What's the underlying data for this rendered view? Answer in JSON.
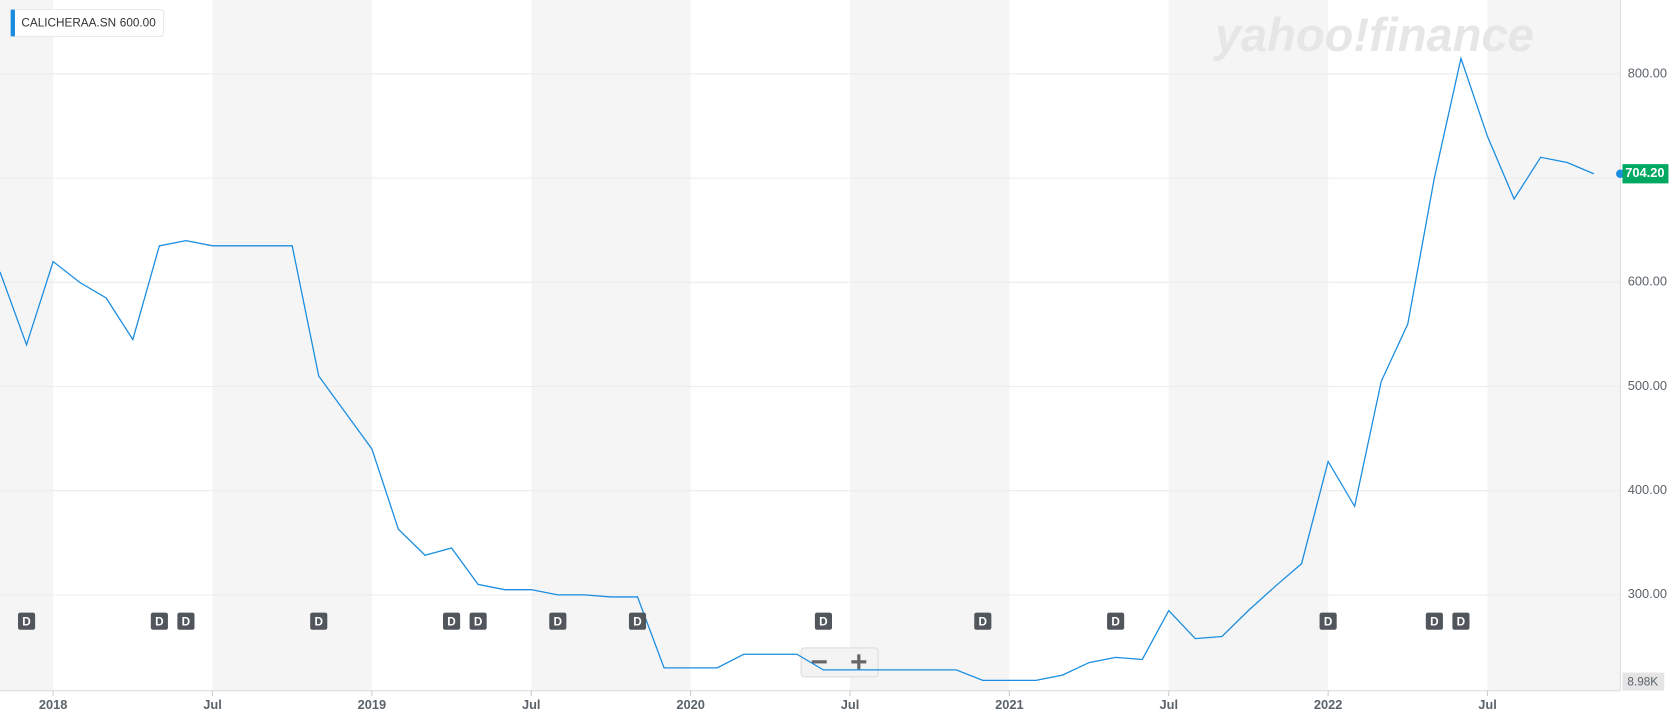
{
  "chart_data": {
    "type": "line",
    "ticker": "CALICHERAA.SN",
    "hover_value": "600.00",
    "watermark": "yahoo!finance",
    "volume_label": "8.98K",
    "x": [
      "2017-11",
      "2017-12",
      "2018-01",
      "2018-02",
      "2018-03",
      "2018-04",
      "2018-05",
      "2018-06",
      "2018-07",
      "2018-08",
      "2018-09",
      "2018-10",
      "2018-11",
      "2018-12",
      "2019-01",
      "2019-02",
      "2019-03",
      "2019-04",
      "2019-05",
      "2019-06",
      "2019-07",
      "2019-08",
      "2019-09",
      "2019-10",
      "2019-11",
      "2019-12",
      "2020-01",
      "2020-02",
      "2020-03",
      "2020-04",
      "2020-05",
      "2020-06",
      "2020-07",
      "2020-08",
      "2020-09",
      "2020-10",
      "2020-11",
      "2020-12",
      "2021-01",
      "2021-02",
      "2021-03",
      "2021-04",
      "2021-05",
      "2021-06",
      "2021-07",
      "2021-08",
      "2021-09",
      "2021-10",
      "2021-11",
      "2021-12",
      "2022-01",
      "2022-02",
      "2022-03",
      "2022-04",
      "2022-05",
      "2022-06",
      "2022-07",
      "2022-08",
      "2022-09",
      "2022-10",
      "2022-11"
    ],
    "series": [
      {
        "name": "CALICHERAA.SN",
        "color": "#1a8de0",
        "values": [
          610,
          540,
          620,
          600,
          585,
          545,
          635,
          640,
          635,
          635,
          635,
          635,
          510,
          475,
          440,
          363,
          338,
          345,
          310,
          305,
          305,
          300,
          300,
          298,
          298,
          230,
          230,
          230,
          243,
          243,
          243,
          228,
          228,
          228,
          228,
          228,
          228,
          218,
          218,
          218,
          223,
          235,
          240,
          238,
          285,
          258,
          260,
          285,
          308,
          330,
          428,
          385,
          505,
          560,
          700,
          815,
          740,
          680,
          720,
          715,
          704.2
        ]
      }
    ],
    "current_price": {
      "value": 704.2,
      "label": "704.20"
    },
    "dividends": {
      "label": "D",
      "x": [
        "2017-12",
        "2018-05",
        "2018-06",
        "2018-11",
        "2019-04",
        "2019-05",
        "2019-08",
        "2019-11",
        "2020-06",
        "2020-12",
        "2021-05",
        "2022-01",
        "2022-05",
        "2022-06"
      ]
    },
    "xlim": [
      "2017-11",
      "2022-12"
    ],
    "xticks": [
      {
        "value": "2018-01",
        "label": "2018"
      },
      {
        "value": "2018-07",
        "label": "Jul"
      },
      {
        "value": "2019-01",
        "label": "2019"
      },
      {
        "value": "2019-07",
        "label": "Jul"
      },
      {
        "value": "2020-01",
        "label": "2020"
      },
      {
        "value": "2020-07",
        "label": "Jul"
      },
      {
        "value": "2021-01",
        "label": "2021"
      },
      {
        "value": "2021-07",
        "label": "Jul"
      },
      {
        "value": "2022-01",
        "label": "2022"
      },
      {
        "value": "2022-07",
        "label": "Jul"
      }
    ],
    "ylim": [
      208,
      871
    ],
    "yticks": [
      {
        "value": 300,
        "label": "300.00"
      },
      {
        "value": 400,
        "label": "400.00"
      },
      {
        "value": 500,
        "label": "500.00"
      },
      {
        "value": 600,
        "label": "600.00"
      },
      {
        "value": 700,
        "label": "700.00"
      },
      {
        "value": 800,
        "label": "800.00"
      }
    ],
    "grid": true
  }
}
